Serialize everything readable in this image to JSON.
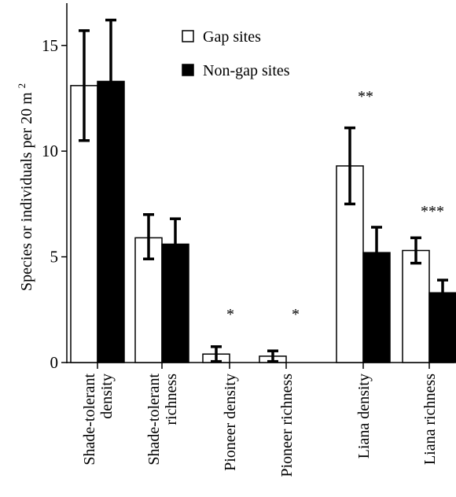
{
  "chart_data": {
    "type": "bar",
    "ylabel": "Species or individuals per 20 m",
    "ylabel_superscript": "2",
    "ylim": [
      0,
      17
    ],
    "yticks": [
      "0",
      "5",
      "10",
      "15"
    ],
    "categories": [
      [
        "Shade-tolerant",
        "density"
      ],
      [
        "Shade-tolerant",
        "richness"
      ],
      [
        "Pioneer density"
      ],
      [
        "Pioneer richness"
      ],
      [
        "Liana density"
      ],
      [
        "Liana richness"
      ]
    ],
    "series": [
      {
        "name": "Gap sites",
        "color": "#ffffff",
        "values": [
          13.1,
          5.9,
          0.4,
          0.3,
          9.3,
          5.3
        ],
        "err_upper": [
          15.7,
          7.0,
          0.75,
          0.55,
          11.1,
          5.9
        ],
        "err_lower": [
          10.5,
          4.9,
          0.05,
          0.05,
          7.5,
          4.7
        ]
      },
      {
        "name": "Non-gap sites",
        "color": "#000000",
        "values": [
          13.3,
          5.6,
          0,
          0,
          5.2,
          3.3
        ],
        "err_upper": [
          16.2,
          6.8,
          null,
          null,
          6.4,
          3.9
        ],
        "err_lower": [
          null,
          null,
          null,
          null,
          null,
          null
        ]
      }
    ],
    "annotations": [
      "*",
      "*",
      "**",
      "***"
    ],
    "legend_position": "top-center"
  }
}
